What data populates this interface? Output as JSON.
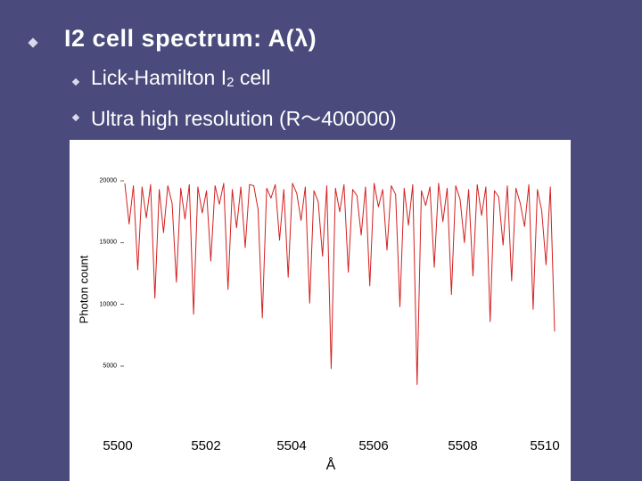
{
  "title": "I2 cell spectrum: A(λ)",
  "bullets": [
    {
      "text_before": "Lick-Hamilton I",
      "subscript": "2",
      "text_after": " cell"
    },
    {
      "text": "Ultra high resolution (R～400000)"
    }
  ],
  "colors": {
    "background": "#4a4a7c",
    "bullet": "#d9d9ee",
    "series": "#d42020"
  },
  "chart_data": {
    "type": "line",
    "title": "",
    "xlabel": "Å",
    "ylabel": "Photon count",
    "xlim": [
      5500,
      5510
    ],
    "ylim": [
      5000,
      20000
    ],
    "x_ticks": [
      "5500",
      "5502",
      "5504",
      "5506",
      "5508",
      "5510"
    ],
    "y_ticks": [
      "20000",
      "15000",
      "10000",
      "5000"
    ],
    "grid": false,
    "legend": "none",
    "series": [
      {
        "color": "#d42020",
        "x": [
          5500.0,
          5500.1,
          5500.2,
          5500.3,
          5500.4,
          5500.5,
          5500.6,
          5500.7,
          5500.8,
          5500.9,
          5501.0,
          5501.1,
          5501.2,
          5501.3,
          5501.4,
          5501.5,
          5501.6,
          5501.7,
          5501.8,
          5501.9,
          5502.0,
          5502.1,
          5502.2,
          5502.3,
          5502.4,
          5502.5,
          5502.6,
          5502.7,
          5502.8,
          5502.9,
          5503.0,
          5503.1,
          5503.2,
          5503.3,
          5503.4,
          5503.5,
          5503.6,
          5503.7,
          5503.8,
          5503.9,
          5504.0,
          5504.1,
          5504.2,
          5504.3,
          5504.4,
          5504.5,
          5504.6,
          5504.7,
          5504.8,
          5504.9,
          5505.0,
          5505.1,
          5505.2,
          5505.3,
          5505.4,
          5505.5,
          5505.6,
          5505.7,
          5505.8,
          5505.9,
          5506.0,
          5506.1,
          5506.2,
          5506.3,
          5506.4,
          5506.5,
          5506.6,
          5506.7,
          5506.8,
          5506.9,
          5507.0,
          5507.1,
          5507.2,
          5507.3,
          5507.4,
          5507.5,
          5507.6,
          5507.7,
          5507.8,
          5507.9,
          5508.0,
          5508.1,
          5508.2,
          5508.3,
          5508.4,
          5508.5,
          5508.6,
          5508.7,
          5508.8,
          5508.9,
          5509.0,
          5509.1,
          5509.2,
          5509.3,
          5509.4,
          5509.5,
          5509.6,
          5509.7,
          5509.8,
          5509.9,
          5510.0
        ],
        "y": [
          19800,
          16500,
          19600,
          12800,
          19500,
          17000,
          19700,
          10500,
          19300,
          15800,
          19600,
          18200,
          11800,
          19400,
          16900,
          19700,
          9200,
          19500,
          17400,
          19200,
          13500,
          19600,
          18100,
          19800,
          11200,
          19300,
          16200,
          19500,
          14600,
          19700,
          19600,
          17700,
          8900,
          19400,
          18600,
          19700,
          15200,
          19300,
          12200,
          19800,
          19000,
          16800,
          19500,
          10100,
          19200,
          18300,
          13900,
          19600,
          4800,
          19400,
          17500,
          19700,
          12600,
          19300,
          18800,
          15600,
          19500,
          11500,
          19800,
          17900,
          19300,
          14400,
          19600,
          18900,
          9800,
          19400,
          16400,
          19700,
          3500,
          19200,
          18000,
          19500,
          13000,
          19800,
          16700,
          19400,
          10800,
          19600,
          18500,
          15000,
          19300,
          12300,
          19700,
          17200,
          19500,
          8600,
          19200,
          18700,
          14800,
          19600,
          11900,
          19400,
          18200,
          16300,
          19700,
          9600,
          19300,
          17600,
          13200,
          19500,
          7800
        ]
      }
    ]
  }
}
